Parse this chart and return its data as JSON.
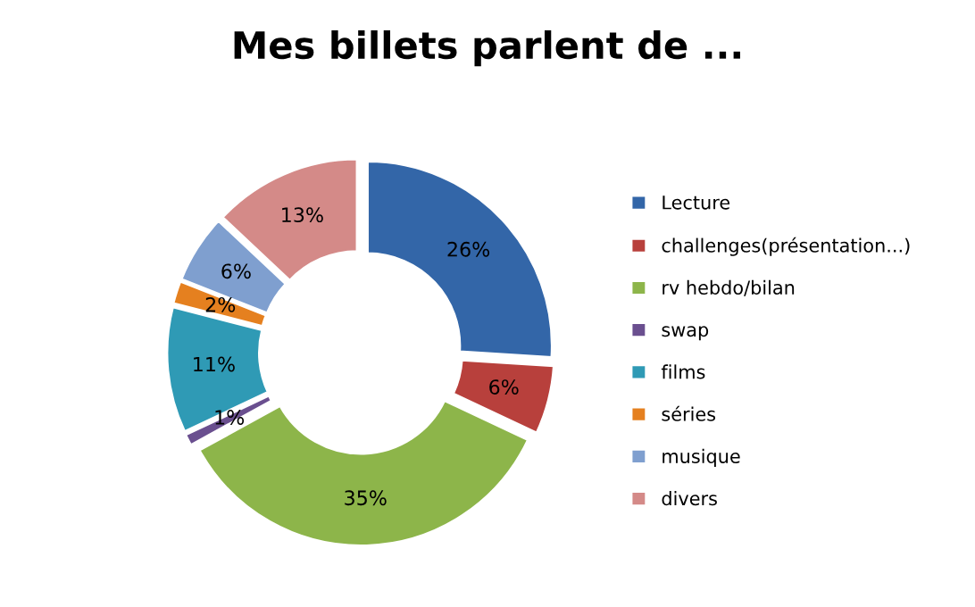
{
  "chart_data": {
    "type": "donut",
    "title": "Mes billets parlent de ...",
    "categories": [
      "Lecture",
      "challenges(présentation...)",
      "rv hebdo/bilan",
      "swap",
      "films",
      "séries",
      "musique",
      "divers"
    ],
    "values": [
      26,
      6,
      35,
      1,
      11,
      2,
      6,
      13
    ],
    "colors": [
      "#3366a8",
      "#b8403c",
      "#8db54a",
      "#6a4f8f",
      "#2f9ab5",
      "#e5801f",
      "#7f9fcf",
      "#d48a88"
    ],
    "value_labels": [
      "26%",
      "6%",
      "35%",
      "1%",
      "11%",
      "2%",
      "6%",
      "13%"
    ],
    "legend": "right"
  }
}
